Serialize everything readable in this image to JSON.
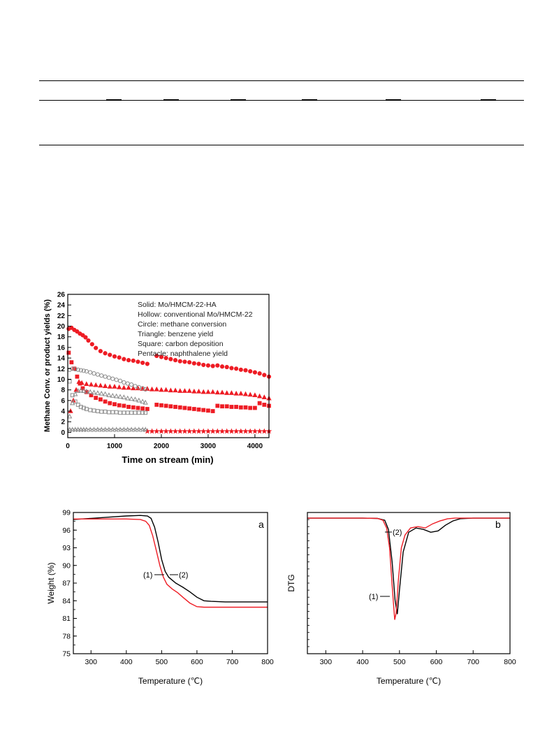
{
  "fig1": {
    "legend_lines": [
      "Solid: Mo/HMCM-22-HA",
      "Hollow: conventional Mo/HMCM-22",
      "Circle: methane conversion",
      "Triangle: benzene yield",
      "Square: carbon deposition",
      "Pentacle: naphthalene yield"
    ]
  },
  "colors": {
    "red": "#ee1c24",
    "black": "#000000",
    "gray": "#8a8a8a"
  },
  "chart_data": [
    {
      "type": "scatter",
      "xlabel": "Time on stream (min)",
      "ylabel": "Methane Conv. or product yields (%)",
      "xlim": [
        0,
        4300
      ],
      "ylim": [
        -1,
        26
      ],
      "xticks": [
        0,
        1000,
        2000,
        3000,
        4000
      ],
      "yticks": [
        0,
        2,
        4,
        6,
        8,
        10,
        12,
        14,
        16,
        18,
        20,
        22,
        24,
        26
      ],
      "grid": false,
      "series": [
        {
          "marker": "circle-filled",
          "color": "#ee1c24",
          "x": [
            20,
            80,
            140,
            200,
            260,
            320,
            380,
            440,
            520,
            600,
            700,
            800,
            900,
            1000,
            1100,
            1200,
            1300,
            1400,
            1500,
            1600,
            1700,
            1900,
            2000,
            2100,
            2200,
            2300,
            2400,
            2500,
            2600,
            2700,
            2800,
            2900,
            3000,
            3100,
            3200,
            3300,
            3400,
            3500,
            3600,
            3700,
            3800,
            3900,
            4000,
            4100,
            4200,
            4300
          ],
          "y": [
            19.5,
            19.7,
            19.3,
            19.0,
            18.6,
            18.3,
            17.9,
            17.3,
            16.6,
            15.9,
            15.3,
            14.9,
            14.6,
            14.3,
            14.1,
            13.8,
            13.6,
            13.5,
            13.3,
            13.1,
            12.9,
            14.4,
            14.2,
            14.0,
            13.8,
            13.6,
            13.4,
            13.3,
            13.2,
            13.0,
            12.9,
            12.7,
            12.6,
            12.5,
            12.6,
            12.4,
            12.3,
            12.1,
            12.0,
            11.8,
            11.7,
            11.5,
            11.3,
            11.1,
            10.8,
            10.5
          ]
        },
        {
          "marker": "triangle-filled",
          "color": "#ee1c24",
          "x": [
            60,
            120,
            180,
            240,
            300,
            400,
            500,
            600,
            700,
            800,
            900,
            1000,
            1100,
            1200,
            1300,
            1400,
            1500,
            1600,
            1700,
            1800,
            1900,
            2000,
            2100,
            2200,
            2300,
            2400,
            2500,
            2600,
            2700,
            2800,
            2900,
            3000,
            3100,
            3200,
            3300,
            3400,
            3500,
            3600,
            3700,
            3800,
            3900,
            4000,
            4100,
            4200,
            4300
          ],
          "y": [
            4.0,
            6.0,
            8.0,
            9.5,
            9.3,
            9.1,
            9.0,
            8.9,
            8.8,
            8.7,
            8.6,
            8.6,
            8.5,
            8.4,
            8.4,
            8.3,
            8.3,
            8.2,
            8.2,
            8.1,
            8.1,
            8.0,
            8.0,
            7.9,
            7.9,
            7.8,
            7.8,
            7.8,
            7.7,
            7.7,
            7.6,
            7.6,
            7.6,
            7.5,
            7.5,
            7.4,
            7.4,
            7.3,
            7.3,
            7.2,
            7.1,
            7.0,
            6.8,
            6.6,
            6.4
          ]
        },
        {
          "marker": "square-filled",
          "color": "#ee1c24",
          "x": [
            20,
            80,
            140,
            200,
            260,
            320,
            400,
            500,
            600,
            700,
            800,
            900,
            1000,
            1100,
            1200,
            1300,
            1400,
            1500,
            1600,
            1700,
            1900,
            2000,
            2100,
            2200,
            2300,
            2400,
            2500,
            2600,
            2700,
            2800,
            2900,
            3000,
            3100,
            3200,
            3300,
            3400,
            3500,
            3600,
            3700,
            3800,
            3900,
            4000,
            4100,
            4200,
            4300
          ],
          "y": [
            15.0,
            13.2,
            12.0,
            10.5,
            9.2,
            8.3,
            7.6,
            7.0,
            6.5,
            6.2,
            5.8,
            5.5,
            5.3,
            5.1,
            5.0,
            4.8,
            4.7,
            4.6,
            4.5,
            4.4,
            5.2,
            5.1,
            5.0,
            4.9,
            4.8,
            4.7,
            4.6,
            4.5,
            4.4,
            4.3,
            4.2,
            4.1,
            4.0,
            5.0,
            4.9,
            4.9,
            4.8,
            4.8,
            4.7,
            4.7,
            4.6,
            4.6,
            5.5,
            5.2,
            5.0
          ]
        },
        {
          "marker": "star-filled",
          "color": "#ee1c24",
          "x": [
            1700,
            1800,
            1900,
            2000,
            2100,
            2200,
            2300,
            2400,
            2500,
            2600,
            2700,
            2800,
            2900,
            3000,
            3100,
            3200,
            3300,
            3400,
            3500,
            3600,
            3700,
            3800,
            3900,
            4000,
            4100,
            4200,
            4300
          ],
          "y": [
            0.2,
            0.2,
            0.2,
            0.2,
            0.2,
            0.2,
            0.2,
            0.2,
            0.2,
            0.2,
            0.2,
            0.2,
            0.2,
            0.2,
            0.2,
            0.2,
            0.2,
            0.2,
            0.2,
            0.2,
            0.2,
            0.2,
            0.2,
            0.2,
            0.2,
            0.2,
            0.2
          ]
        },
        {
          "marker": "circle-hollow",
          "color": "#8a8a8a",
          "x": [
            40,
            100,
            160,
            220,
            280,
            340,
            400,
            480,
            560,
            640,
            720,
            800,
            880,
            960,
            1040,
            1120,
            1200,
            1280,
            1360,
            1440,
            1520,
            1600,
            1660
          ],
          "y": [
            11.8,
            12.0,
            11.9,
            11.8,
            11.7,
            11.6,
            11.5,
            11.3,
            11.1,
            10.9,
            10.7,
            10.5,
            10.3,
            10.1,
            9.9,
            9.7,
            9.4,
            9.2,
            9.0,
            8.7,
            8.5,
            8.3,
            8.1
          ]
        },
        {
          "marker": "triangle-hollow",
          "color": "#8a8a8a",
          "x": [
            40,
            100,
            160,
            220,
            280,
            340,
            400,
            480,
            560,
            640,
            720,
            800,
            880,
            960,
            1040,
            1120,
            1200,
            1280,
            1360,
            1440,
            1520,
            1600,
            1660
          ],
          "y": [
            3.0,
            5.5,
            7.2,
            7.8,
            7.9,
            7.8,
            7.7,
            7.6,
            7.5,
            7.4,
            7.3,
            7.2,
            7.0,
            6.9,
            6.8,
            6.7,
            6.6,
            6.4,
            6.3,
            6.2,
            6.0,
            5.8,
            5.6
          ]
        },
        {
          "marker": "square-hollow",
          "color": "#8a8a8a",
          "x": [
            40,
            100,
            160,
            220,
            280,
            340,
            400,
            480,
            560,
            640,
            720,
            800,
            880,
            960,
            1040,
            1120,
            1200,
            1280,
            1360,
            1440,
            1520,
            1600,
            1660
          ],
          "y": [
            9.6,
            7.0,
            5.8,
            5.2,
            4.8,
            4.6,
            4.4,
            4.2,
            4.1,
            4.0,
            3.9,
            3.9,
            3.8,
            3.8,
            3.8,
            3.7,
            3.7,
            3.7,
            3.7,
            3.7,
            3.7,
            3.7,
            3.7
          ]
        },
        {
          "marker": "star-hollow",
          "color": "#8a8a8a",
          "x": [
            40,
            100,
            160,
            220,
            280,
            340,
            400,
            480,
            560,
            640,
            720,
            800,
            880,
            960,
            1040,
            1120,
            1200,
            1280,
            1360,
            1440,
            1520,
            1600,
            1660
          ],
          "y": [
            0.5,
            0.5,
            0.5,
            0.5,
            0.5,
            0.5,
            0.5,
            0.5,
            0.5,
            0.5,
            0.5,
            0.5,
            0.5,
            0.5,
            0.5,
            0.5,
            0.5,
            0.5,
            0.5,
            0.5,
            0.5,
            0.5,
            0.5
          ]
        }
      ]
    },
    {
      "type": "line",
      "panel_label": "a",
      "xlabel": "Temperature (℃)",
      "ylabel": "Weight (%)",
      "xlim": [
        250,
        800
      ],
      "ylim": [
        75,
        99
      ],
      "xticks": [
        300,
        400,
        500,
        600,
        700,
        800
      ],
      "yticks": [
        75,
        78,
        81,
        84,
        87,
        90,
        93,
        96,
        99
      ],
      "grid": false,
      "annotations": [
        "(1)",
        "(2)"
      ],
      "series": [
        {
          "color": "#000000",
          "x": [
            250,
            300,
            350,
            400,
            440,
            460,
            470,
            480,
            490,
            500,
            510,
            520,
            540,
            560,
            580,
            600,
            620,
            640,
            680,
            720,
            760,
            800
          ],
          "y": [
            97.8,
            98.0,
            98.2,
            98.4,
            98.5,
            98.4,
            98.0,
            96.5,
            94.0,
            91.0,
            89.0,
            88.0,
            87.0,
            86.3,
            85.5,
            84.6,
            84.0,
            83.9,
            83.8,
            83.8,
            83.8,
            83.8
          ]
        },
        {
          "color": "#ee1c24",
          "x": [
            250,
            300,
            350,
            400,
            440,
            455,
            465,
            475,
            485,
            495,
            505,
            515,
            530,
            545,
            560,
            580,
            600,
            620,
            660,
            700,
            760,
            800
          ],
          "y": [
            97.9,
            97.9,
            97.9,
            97.9,
            97.8,
            97.5,
            96.8,
            95.0,
            92.5,
            90.0,
            88.0,
            86.8,
            86.0,
            85.4,
            84.6,
            83.6,
            83.0,
            82.9,
            82.9,
            82.9,
            82.9,
            82.9
          ]
        }
      ]
    },
    {
      "type": "line",
      "panel_label": "b",
      "xlabel": "Temperature (℃)",
      "ylabel": "DTG",
      "xlim": [
        250,
        800
      ],
      "ylim": [
        0,
        100
      ],
      "xticks": [
        300,
        400,
        500,
        600,
        700,
        800
      ],
      "grid": false,
      "annotations": [
        "(2)",
        "(1)"
      ],
      "series": [
        {
          "color": "#000000",
          "x": [
            250,
            300,
            350,
            400,
            440,
            460,
            470,
            480,
            488,
            494,
            500,
            510,
            525,
            545,
            565,
            585,
            605,
            625,
            645,
            665,
            700,
            750,
            800
          ],
          "y": [
            96,
            96,
            96,
            96,
            95.8,
            94.5,
            88,
            65,
            38,
            28,
            45,
            72,
            86,
            89,
            88,
            86,
            87,
            91,
            94,
            95.6,
            96,
            96,
            96
          ]
        },
        {
          "color": "#ee1c24",
          "x": [
            250,
            300,
            350,
            400,
            440,
            455,
            465,
            473,
            481,
            487,
            491,
            497,
            505,
            515,
            530,
            550,
            570,
            590,
            610,
            630,
            650,
            700,
            750,
            800
          ],
          "y": [
            96,
            96,
            96,
            96,
            95.8,
            94.5,
            89,
            75,
            45,
            24,
            29,
            52,
            75,
            84,
            89,
            90,
            89,
            92,
            94,
            95.5,
            96,
            96,
            96,
            96
          ]
        }
      ]
    }
  ]
}
